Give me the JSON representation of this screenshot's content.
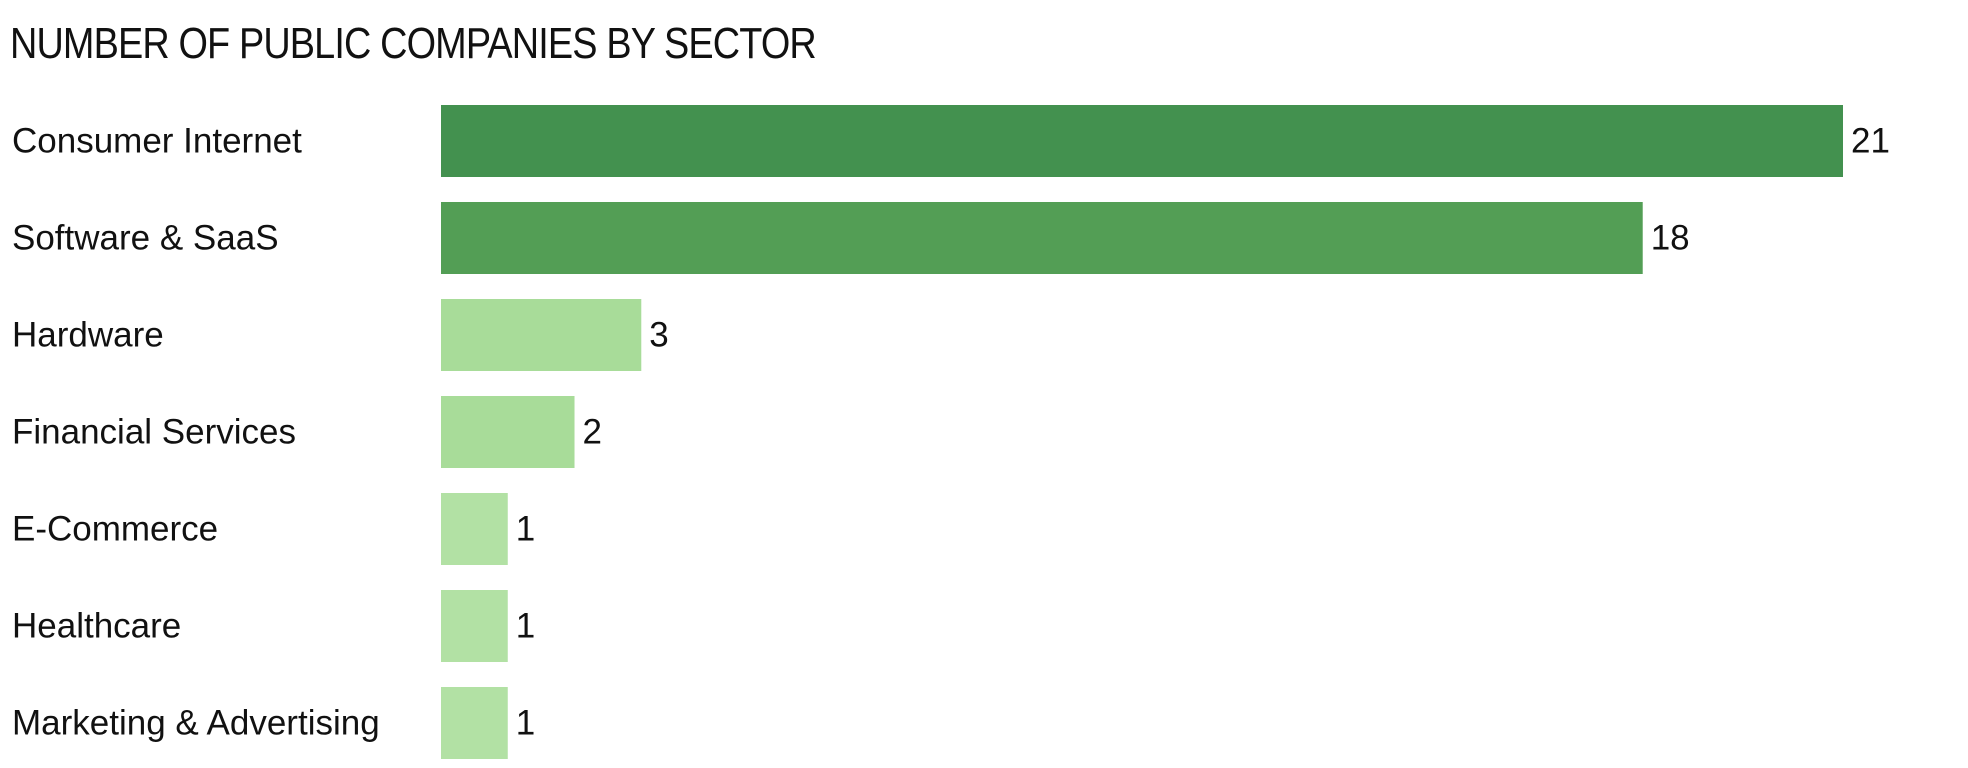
{
  "chart_data": {
    "type": "bar",
    "orientation": "horizontal",
    "title": "NUMBER OF PUBLIC COMPANIES BY SECTOR",
    "categories": [
      "Consumer Internet",
      "Software & SaaS",
      "Hardware",
      "Financial Services",
      "E-Commerce",
      "Healthcare",
      "Marketing & Advertising"
    ],
    "values": [
      21,
      18,
      3,
      2,
      1,
      1,
      1
    ],
    "colors": [
      "#43914f",
      "#539e55",
      "#a8dc99",
      "#a8dc99",
      "#b2e1a4",
      "#b2e1a4",
      "#b2e1a4"
    ],
    "xlim": [
      0,
      21
    ],
    "data_labels": true,
    "grid": false,
    "legend": "none"
  }
}
